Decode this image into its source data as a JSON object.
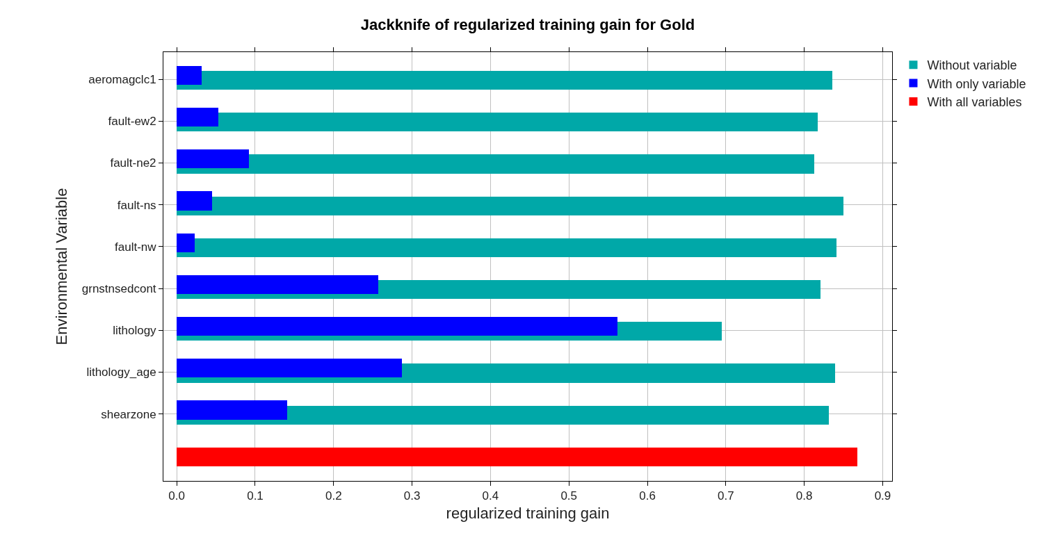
{
  "chart_data": {
    "type": "bar",
    "orientation": "horizontal",
    "title": "Jackknife of regularized training gain for Gold",
    "xlabel": "regularized training gain",
    "ylabel": "Environmental Variable",
    "categories": [
      "aeromagclc1",
      "fault-ew2",
      "fault-ne2",
      "fault-ns",
      "fault-nw",
      "grnstnsedcont",
      "lithology",
      "lithology_age",
      "shearzone",
      null
    ],
    "series": [
      {
        "name": "Without variable",
        "color": "#00a8a8",
        "values": [
          0.836,
          0.817,
          0.813,
          0.85,
          0.841,
          0.821,
          0.695,
          0.839,
          0.831,
          null
        ]
      },
      {
        "name": "With only variable",
        "color": "#0000ff",
        "values": [
          0.032,
          0.053,
          0.092,
          0.045,
          0.023,
          0.257,
          0.562,
          0.287,
          0.141,
          null
        ]
      },
      {
        "name": "With all variables",
        "color": "#ff0000",
        "values": [
          null,
          null,
          null,
          null,
          null,
          null,
          null,
          null,
          null,
          0.868
        ]
      }
    ],
    "xlim": [
      -0.017,
      0.912
    ],
    "xticks": [
      {
        "value": 0,
        "label": "0.0"
      },
      0.1,
      0.2,
      0.3,
      0.4,
      0.5,
      0.6,
      0.7,
      0.8,
      0.9
    ],
    "grid": true,
    "legend": "top right"
  }
}
